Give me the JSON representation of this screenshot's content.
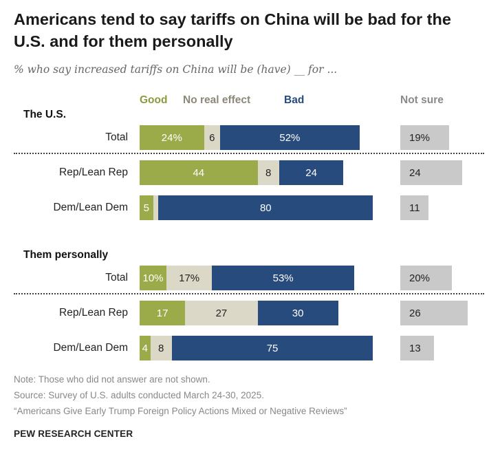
{
  "title": "Americans tend to say tariffs on China will be bad for the U.S. and for them personally",
  "subtitle": "% who say increased tariffs on China will be (have) __ for ...",
  "colors": {
    "good": "#9bab4a",
    "no_effect": "#dcd8c8",
    "bad": "#274b7c",
    "not_sure": "#c9c9c9",
    "good_label": "#8a9a3c",
    "no_effect_label": "#8c8778",
    "bad_label": "#274b7c",
    "not_sure_label": "#8a8a8a"
  },
  "chart_data": {
    "type": "bar",
    "stacked": true,
    "orientation": "horizontal",
    "legend": {
      "good": "Good",
      "no_effect": "No real effect",
      "bad": "Bad",
      "not_sure": "Not sure"
    },
    "sections": [
      {
        "label": "The U.S.",
        "rows": [
          {
            "label": "Total",
            "good": 24,
            "no_effect": 6,
            "bad": 52,
            "not_sure": 19,
            "good_text": "24%",
            "no_effect_text": "6",
            "bad_text": "52%",
            "not_sure_text": "19%"
          },
          {
            "label": "Rep/Lean Rep",
            "good": 44,
            "no_effect": 8,
            "bad": 24,
            "not_sure": 24,
            "good_text": "44",
            "no_effect_text": "8",
            "bad_text": "24",
            "not_sure_text": "24"
          },
          {
            "label": "Dem/Lean Dem",
            "good": 5,
            "no_effect": 2,
            "bad": 80,
            "not_sure": 11,
            "good_text": "5",
            "no_effect_text": "",
            "bad_text": "80",
            "not_sure_text": "11"
          }
        ]
      },
      {
        "label": "Them personally",
        "rows": [
          {
            "label": "Total",
            "good": 10,
            "no_effect": 17,
            "bad": 53,
            "not_sure": 20,
            "good_text": "10%",
            "no_effect_text": "17%",
            "bad_text": "53%",
            "not_sure_text": "20%"
          },
          {
            "label": "Rep/Lean Rep",
            "good": 17,
            "no_effect": 27,
            "bad": 30,
            "not_sure": 26,
            "good_text": "17",
            "no_effect_text": "27",
            "bad_text": "30",
            "not_sure_text": "26"
          },
          {
            "label": "Dem/Lean Dem",
            "good": 4,
            "no_effect": 8,
            "bad": 75,
            "not_sure": 13,
            "good_text": "4",
            "no_effect_text": "8",
            "bad_text": "75",
            "not_sure_text": "13"
          }
        ]
      }
    ]
  },
  "notes": {
    "note": "Note: Those who did not answer are not shown.",
    "source": "Source: Survey of U.S. adults conducted March 24-30, 2025.",
    "report": "“Americans Give Early Trump Foreign Policy Actions Mixed or Negative Reviews”",
    "brand": "PEW RESEARCH CENTER"
  }
}
